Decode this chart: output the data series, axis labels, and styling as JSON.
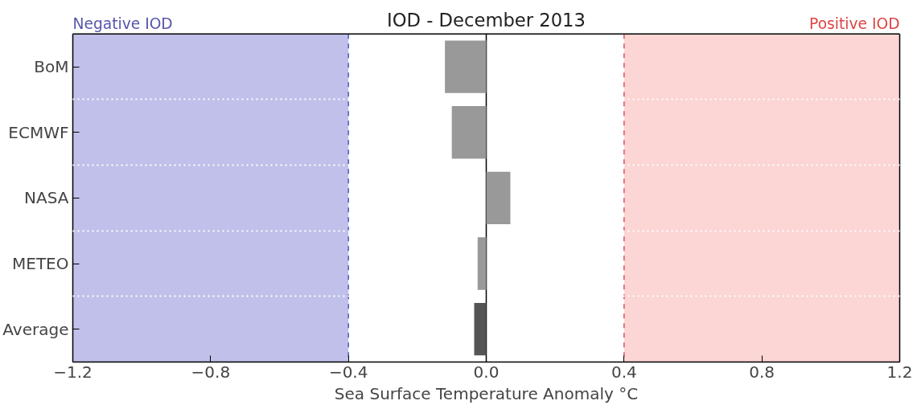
{
  "chart_data": {
    "type": "bar",
    "orientation": "horizontal",
    "title": "IOD - December 2013",
    "xlabel": "Sea Surface Temperature Anomaly °C",
    "categories": [
      "BoM",
      "ECMWF",
      "NASA",
      "METEO",
      "Average"
    ],
    "values": [
      -0.12,
      -0.1,
      0.07,
      -0.025,
      -0.035
    ],
    "colors": [
      "#999999",
      "#999999",
      "#999999",
      "#999999",
      "#555555"
    ],
    "xlim": [
      -1.2,
      1.2
    ],
    "xticks": [
      {
        "value": -1.2,
        "label": "−1.2"
      },
      {
        "value": -0.8,
        "label": "−0.8"
      },
      {
        "value": -0.4,
        "label": "−0.4"
      },
      {
        "value": 0,
        "label": "0.0"
      },
      0.4,
      0.8,
      1.2
    ],
    "bands": [
      {
        "axis": "x",
        "from": -1.2,
        "to": -0.4,
        "label": "Negative IOD",
        "color": "#c0c0ea"
      },
      {
        "axis": "x",
        "from": 0.4,
        "to": 1.2,
        "label": "Positive IOD",
        "color": "#fcd5d5"
      }
    ],
    "ref_lines": [
      {
        "axis": "x",
        "value": -0.4,
        "color": "#5555cc",
        "line_style": "dashed"
      },
      {
        "axis": "x",
        "value": 0.4,
        "color": "#dd5555",
        "line_style": "dashed"
      },
      {
        "axis": "x",
        "value": 0,
        "color": "#000000",
        "line_style": "solid"
      }
    ],
    "grid": "y",
    "legend": false
  }
}
